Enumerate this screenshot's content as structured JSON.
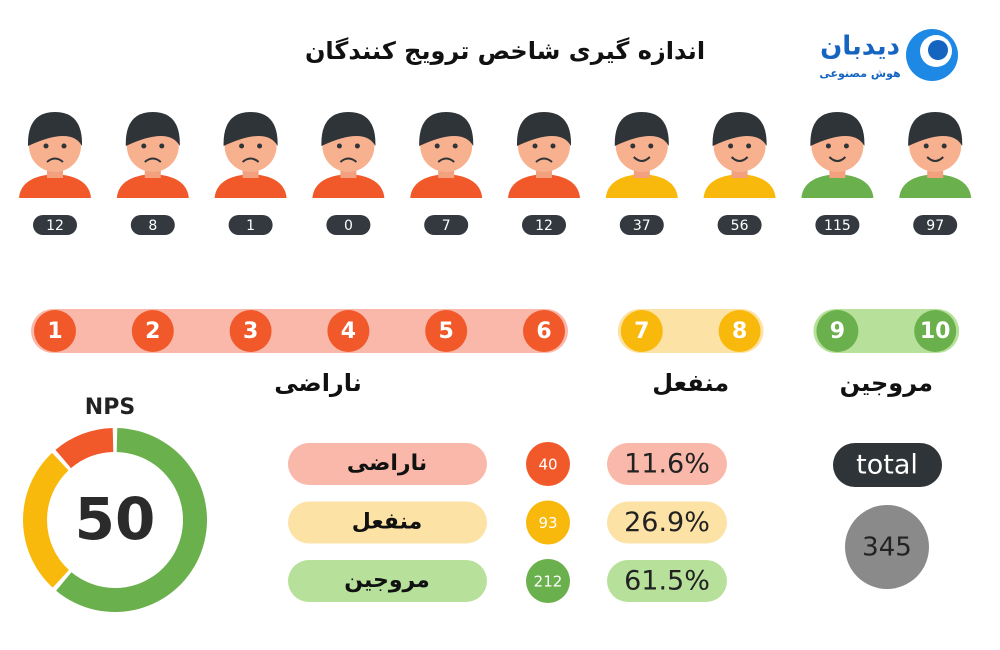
{
  "header": {
    "title": "اندازه گیری شاخص ترویج کنندگان",
    "logo": {
      "name": "دیدبان",
      "tagline": "هوش مصنوعی"
    }
  },
  "groups": [
    {
      "label": "ناراضی",
      "color": "#f1592a",
      "count": 40,
      "percent": "11.6%",
      "scores": [
        {
          "score": 1,
          "count": 12
        },
        {
          "score": 2,
          "count": 8
        },
        {
          "score": 3,
          "count": 1
        },
        {
          "score": 4,
          "count": 0
        },
        {
          "score": 5,
          "count": 7
        },
        {
          "score": 6,
          "count": 12
        }
      ]
    },
    {
      "label": "منفعل",
      "color": "#f8b90c",
      "count": 93,
      "percent": "26.9%",
      "scores": [
        {
          "score": 7,
          "count": 37
        },
        {
          "score": 8,
          "count": 56
        }
      ]
    },
    {
      "label": "مروجین",
      "color": "#6ab04c",
      "count": 212,
      "percent": "61.5%",
      "scores": [
        {
          "score": 9,
          "count": 115
        },
        {
          "score": 10,
          "count": 97
        }
      ]
    }
  ],
  "total": {
    "label": "total",
    "value": 345
  },
  "nps": {
    "label": "NPS",
    "value": 50
  }
}
